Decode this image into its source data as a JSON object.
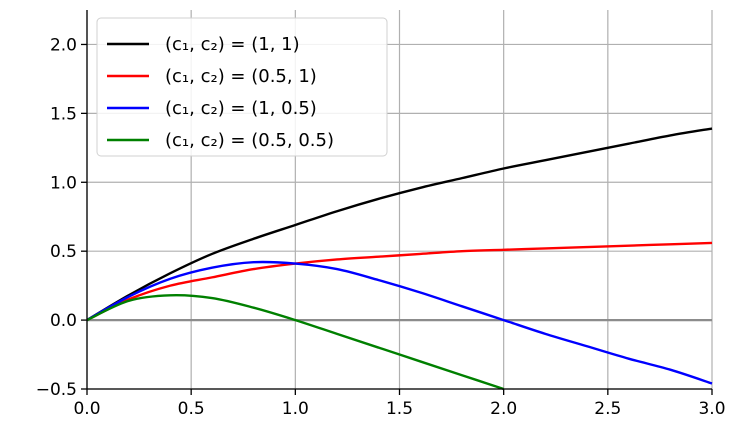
{
  "chart_data": {
    "type": "line",
    "title": "",
    "xlabel": "",
    "ylabel": "",
    "xlim": [
      0.0,
      3.0
    ],
    "ylim": [
      -0.5,
      2.25
    ],
    "xticks": [
      "0.0",
      "0.5",
      "1.0",
      "1.5",
      "2.0",
      "2.5",
      "3.0"
    ],
    "yticks": [
      "−0.5",
      "0.0",
      "0.5",
      "1.0",
      "1.5",
      "2.0"
    ],
    "grid": true,
    "legend_position": "top-left",
    "x": [
      0.0,
      0.2,
      0.4,
      0.6,
      0.8,
      1.0,
      1.2,
      1.4,
      1.6,
      1.8,
      2.0,
      2.2,
      2.4,
      2.6,
      2.8,
      3.0
    ],
    "series": [
      {
        "name": "(c₁, c₂) = (1, 1)",
        "color": "#000000",
        "x": [
          0.0,
          0.2,
          0.4,
          0.6,
          0.8,
          1.0,
          1.2,
          1.4,
          1.6,
          1.8,
          2.0,
          2.2,
          2.4,
          2.6,
          2.8,
          3.0
        ],
        "values": [
          0.0,
          0.18,
          0.34,
          0.48,
          0.59,
          0.69,
          0.79,
          0.88,
          0.96,
          1.03,
          1.1,
          1.16,
          1.22,
          1.28,
          1.34,
          1.39
        ]
      },
      {
        "name": "(c₁, c₂) = (0.5, 1)",
        "color": "#ff0000",
        "x": [
          0.0,
          0.2,
          0.4,
          0.6,
          0.8,
          1.0,
          1.2,
          1.4,
          1.6,
          1.8,
          2.0,
          2.2,
          2.4,
          2.6,
          2.8,
          3.0
        ],
        "values": [
          0.0,
          0.15,
          0.25,
          0.31,
          0.37,
          0.41,
          0.44,
          0.46,
          0.48,
          0.5,
          0.51,
          0.52,
          0.53,
          0.54,
          0.55,
          0.56
        ]
      },
      {
        "name": "(c₁, c₂) = (1, 0.5)",
        "color": "#0000ff",
        "x": [
          0.0,
          0.2,
          0.4,
          0.6,
          0.8,
          1.0,
          1.2,
          1.4,
          1.6,
          1.8,
          2.0,
          2.2,
          2.4,
          2.6,
          2.8,
          3.0
        ],
        "values": [
          0.0,
          0.17,
          0.3,
          0.38,
          0.42,
          0.41,
          0.37,
          0.29,
          0.2,
          0.1,
          0.0,
          -0.1,
          -0.19,
          -0.28,
          -0.36,
          -0.46
        ]
      },
      {
        "name": "(c₁, c₂) = (0.5, 0.5)",
        "color": "#008000",
        "x": [
          0.0,
          0.2,
          0.4,
          0.6,
          0.8,
          1.0,
          1.2,
          1.4,
          1.6,
          1.8,
          2.0
        ],
        "values": [
          0.0,
          0.14,
          0.18,
          0.16,
          0.09,
          0.0,
          -0.1,
          -0.2,
          -0.3,
          -0.4,
          -0.5
        ]
      }
    ]
  }
}
